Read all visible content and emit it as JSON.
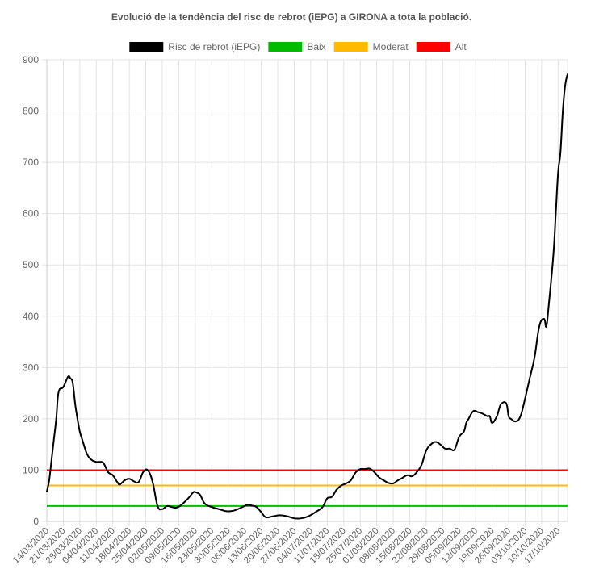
{
  "chart_data": {
    "type": "line",
    "title": "Evolució de la tendència del risc de rebrot (iEPG) a GIRONA a tota la població.",
    "xlabel": "",
    "ylabel": "",
    "ylim": [
      0,
      900
    ],
    "yticks": [
      0,
      100,
      200,
      300,
      400,
      500,
      600,
      700,
      800,
      900
    ],
    "grid": true,
    "legend_position": "top",
    "x_tick_labels": [
      "14/03/2020",
      "21/03/2020",
      "28/03/2020",
      "04/04/2020",
      "11/04/2020",
      "18/04/2020",
      "25/04/2020",
      "02/05/2020",
      "09/05/2020",
      "16/05/2020",
      "23/05/2020",
      "30/05/2020",
      "06/06/2020",
      "13/06/2020",
      "20/06/2020",
      "27/06/2020",
      "04/07/2020",
      "11/07/2020",
      "18/07/2020",
      "25/07/2020",
      "01/08/2020",
      "08/08/2020",
      "15/08/2020",
      "22/08/2020",
      "29/08/2020",
      "05/09/2020",
      "12/09/2020",
      "19/09/2020",
      "26/09/2020",
      "03/10/2020",
      "10/10/2020",
      "17/10/2020"
    ],
    "x_start": "14/03/2020",
    "series": [
      {
        "name": "Risc de rebrot (iEPG)",
        "color": "#000000",
        "x": [
          "14/03/2020",
          "15/03/2020",
          "16/03/2020",
          "17/03/2020",
          "18/03/2020",
          "19/03/2020",
          "21/03/2020",
          "23/03/2020",
          "24/03/2020",
          "25/03/2020",
          "26/03/2020",
          "27/03/2020",
          "28/03/2020",
          "29/03/2020",
          "31/03/2020",
          "02/04/2020",
          "04/04/2020",
          "05/04/2020",
          "07/04/2020",
          "09/04/2020",
          "11/04/2020",
          "13/04/2020",
          "14/04/2020",
          "16/04/2020",
          "18/04/2020",
          "20/04/2020",
          "22/04/2020",
          "24/04/2020",
          "26/04/2020",
          "28/04/2020",
          "30/04/2020",
          "02/05/2020",
          "04/05/2020",
          "06/05/2020",
          "08/05/2020",
          "10/05/2020",
          "13/05/2020",
          "15/05/2020",
          "16/05/2020",
          "18/05/2020",
          "20/05/2020",
          "23/05/2020",
          "26/05/2020",
          "29/05/2020",
          "31/05/2020",
          "02/06/2020",
          "05/06/2020",
          "07/06/2020",
          "09/06/2020",
          "11/06/2020",
          "13/06/2020",
          "15/06/2020",
          "18/06/2020",
          "21/06/2020",
          "24/06/2020",
          "27/06/2020",
          "30/06/2020",
          "03/07/2020",
          "06/07/2020",
          "09/07/2020",
          "11/07/2020",
          "13/07/2020",
          "15/07/2020",
          "17/07/2020",
          "19/07/2020",
          "21/07/2020",
          "23/07/2020",
          "25/07/2020",
          "27/07/2020",
          "29/07/2020",
          "31/07/2020",
          "02/08/2020",
          "04/08/2020",
          "06/08/2020",
          "08/08/2020",
          "10/08/2020",
          "12/08/2020",
          "14/08/2020",
          "16/08/2020",
          "18/08/2020",
          "20/08/2020",
          "22/08/2020",
          "24/08/2020",
          "26/08/2020",
          "28/08/2020",
          "30/08/2020",
          "01/09/2020",
          "03/09/2020",
          "05/09/2020",
          "07/09/2020",
          "08/09/2020",
          "09/09/2020",
          "11/09/2020",
          "13/09/2020",
          "15/09/2020",
          "17/09/2020",
          "18/09/2020",
          "19/09/2020",
          "21/09/2020",
          "22/09/2020",
          "23/09/2020",
          "25/09/2020",
          "26/09/2020",
          "27/09/2020",
          "29/09/2020",
          "01/10/2020",
          "03/10/2020",
          "05/10/2020",
          "07/10/2020",
          "09/10/2020",
          "11/10/2020",
          "12/10/2020",
          "13/10/2020",
          "15/10/2020",
          "16/10/2020",
          "17/10/2020",
          "18/10/2020",
          "19/10/2020",
          "20/10/2020",
          "21/10/2020"
        ],
        "values": [
          58,
          80,
          120,
          160,
          200,
          252,
          262,
          282,
          279,
          270,
          230,
          200,
          175,
          160,
          132,
          120,
          116,
          116,
          114,
          96,
          90,
          76,
          72,
          80,
          83,
          78,
          77,
          97,
          99,
          75,
          30,
          24,
          30,
          28,
          27,
          32,
          45,
          56,
          57,
          52,
          35,
          28,
          24,
          20,
          20,
          22,
          28,
          32,
          31,
          28,
          18,
          8,
          10,
          12,
          10,
          6,
          6,
          10,
          18,
          28,
          45,
          48,
          62,
          70,
          74,
          80,
          95,
          102,
          102,
          103,
          96,
          86,
          80,
          75,
          74,
          80,
          85,
          90,
          88,
          96,
          110,
          138,
          150,
          155,
          150,
          142,
          142,
          140,
          165,
          175,
          192,
          200,
          215,
          213,
          210,
          205,
          205,
          192,
          205,
          220,
          230,
          230,
          205,
          200,
          195,
          205,
          240,
          280,
          320,
          380,
          395,
          380,
          420,
          520,
          600,
          680,
          720,
          800,
          850,
          872
        ]
      },
      {
        "name": "Baix",
        "color": "#00bb00",
        "constant": 30
      },
      {
        "name": "Moderat",
        "color": "#ffbb00",
        "constant": 70
      },
      {
        "name": "Alt",
        "color": "#ff0000",
        "constant": 100
      }
    ]
  }
}
